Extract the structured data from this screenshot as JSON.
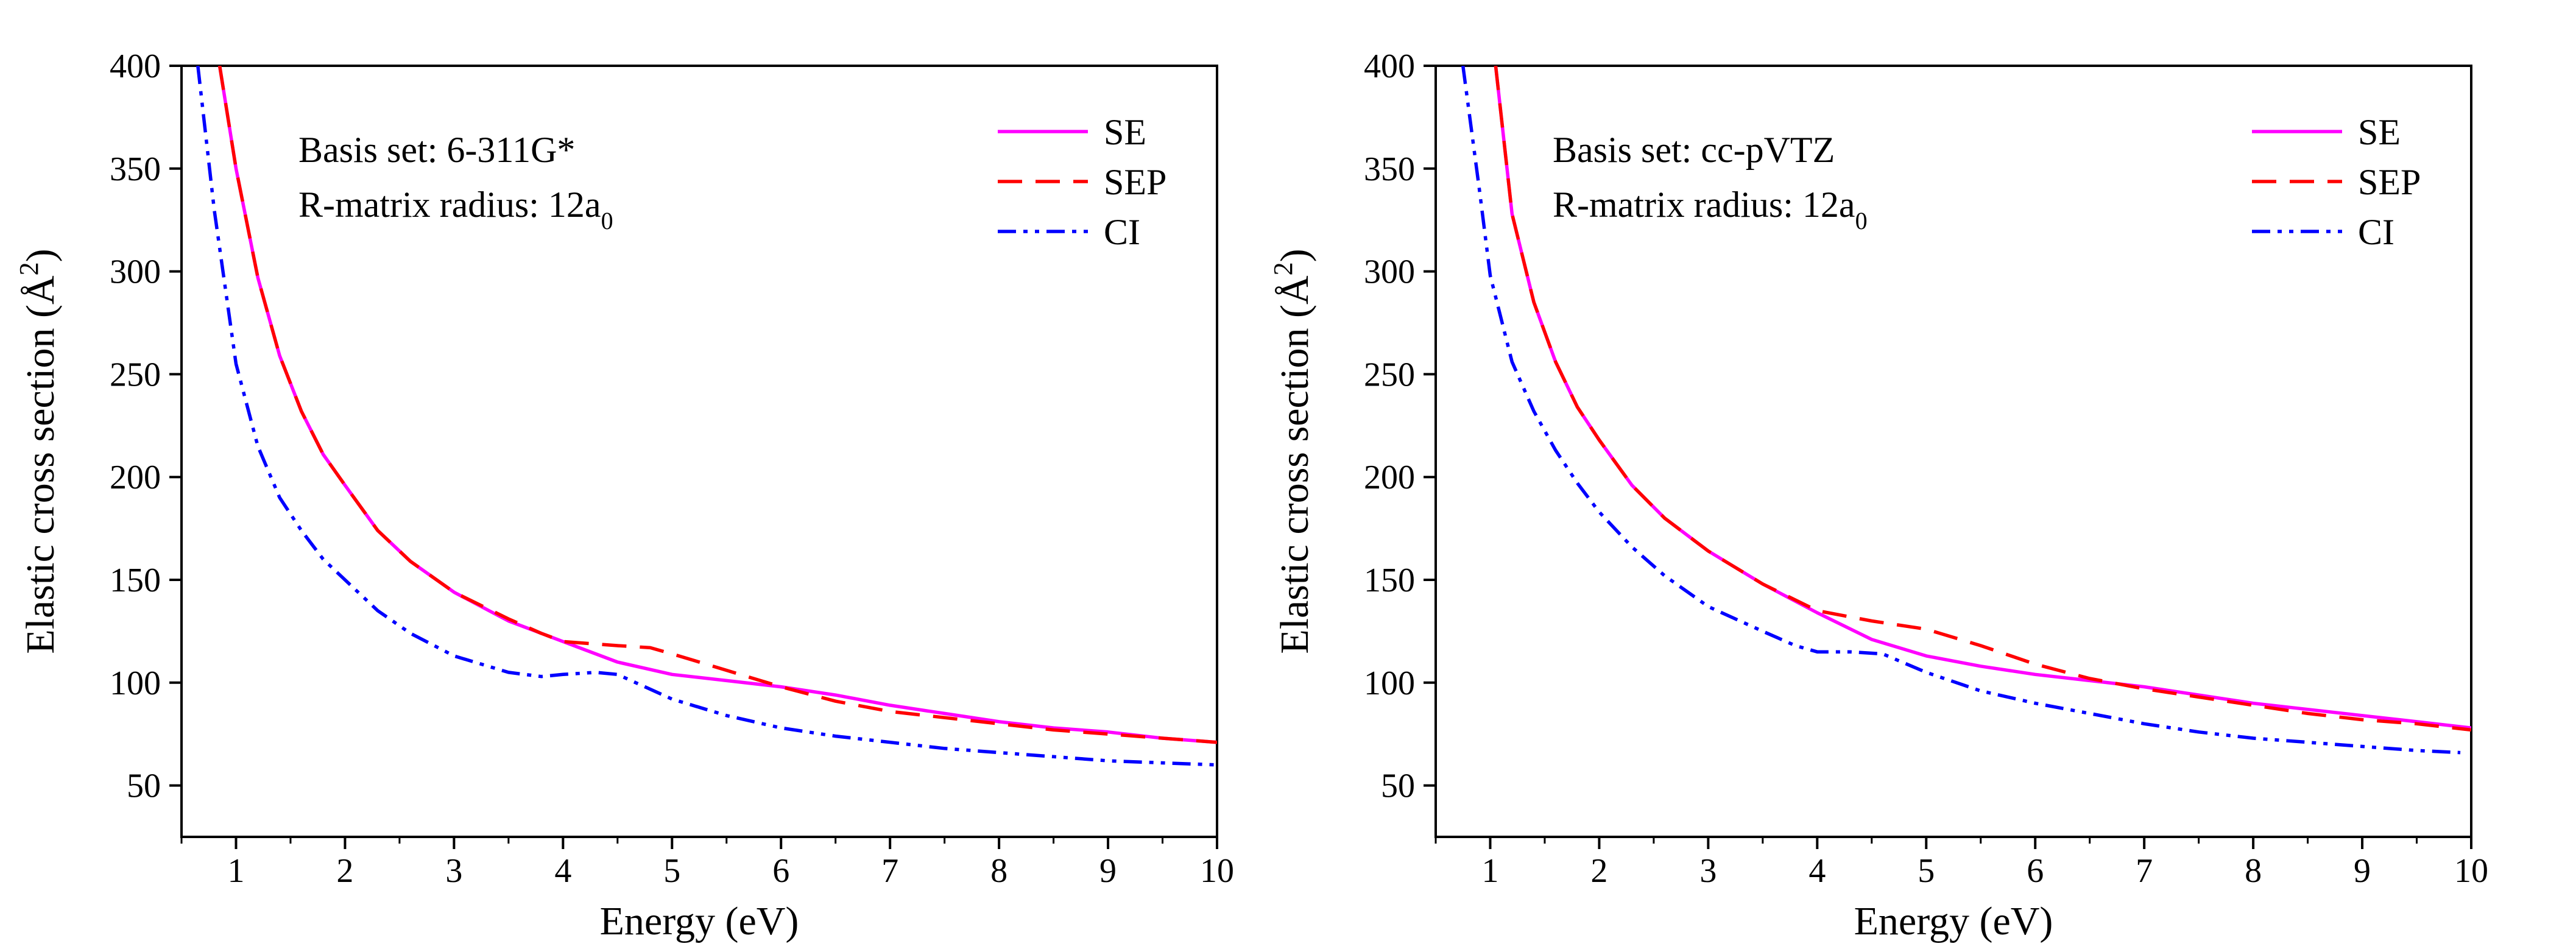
{
  "chart_data": [
    {
      "type": "line",
      "annotation": {
        "basis_label": "Basis set: 6-311G*",
        "radius_label": "R-matrix radius: 12a",
        "radius_subscript": "0"
      },
      "xlabel": "Energy (eV)",
      "ylabel": "Elastic cross section (Å",
      "ylabel_superscript": "2",
      "ylabel_close": ")",
      "xlim": [
        0.5,
        10
      ],
      "ylim": [
        25,
        400
      ],
      "x_ticks": [
        "1",
        "2",
        "3",
        "4",
        "5",
        "6",
        "7",
        "8",
        "9",
        "10"
      ],
      "y_ticks": [
        "50",
        "100",
        "150",
        "200",
        "250",
        "300",
        "350",
        "400"
      ],
      "legend_position": "top-right",
      "series": [
        {
          "name": "SE",
          "color": "#ff00ff",
          "style": "solid",
          "x": [
            0.85,
            1.0,
            1.2,
            1.4,
            1.6,
            1.8,
            2.0,
            2.3,
            2.6,
            3.0,
            3.5,
            4.0,
            4.5,
            5.0,
            5.5,
            6.0,
            6.5,
            7.0,
            7.5,
            8.0,
            8.5,
            9.0,
            9.5,
            10.0
          ],
          "values": [
            400,
            350,
            297,
            259,
            232,
            211,
            196,
            174,
            159,
            144,
            130,
            120,
            110,
            104,
            101,
            98,
            94,
            89,
            85,
            81,
            78,
            76,
            73,
            71
          ]
        },
        {
          "name": "SEP",
          "color": "#ff0000",
          "style": "dashed",
          "x": [
            0.85,
            1.0,
            1.2,
            1.4,
            1.6,
            1.8,
            2.0,
            2.3,
            2.6,
            3.0,
            3.5,
            3.8,
            4.0,
            4.5,
            4.8,
            5.0,
            5.5,
            6.0,
            6.5,
            7.0,
            7.5,
            8.0,
            8.5,
            9.0,
            9.5,
            10.0
          ],
          "values": [
            400,
            350,
            297,
            259,
            232,
            211,
            196,
            174,
            159,
            144,
            131,
            124,
            120,
            118,
            117,
            114,
            106,
            98,
            91,
            86,
            83,
            80,
            77,
            75,
            73,
            71
          ]
        },
        {
          "name": "CI",
          "color": "#0000ff",
          "style": "dashdotdot",
          "x": [
            0.65,
            0.8,
            1.0,
            1.2,
            1.4,
            1.6,
            1.8,
            2.0,
            2.3,
            2.6,
            3.0,
            3.5,
            3.8,
            4.0,
            4.3,
            4.5,
            5.0,
            5.5,
            6.0,
            6.5,
            7.0,
            7.5,
            8.0,
            8.5,
            9.0,
            9.5,
            10.0
          ],
          "values": [
            400,
            330,
            255,
            215,
            190,
            174,
            160,
            150,
            135,
            124,
            113,
            105,
            103,
            104,
            105,
            104,
            92,
            84,
            78,
            74,
            71,
            68,
            66,
            64,
            62,
            61,
            60
          ]
        }
      ]
    },
    {
      "type": "line",
      "annotation": {
        "basis_label": "Basis set: cc-pVTZ",
        "radius_label": "R-matrix radius: 12a",
        "radius_subscript": "0"
      },
      "xlabel": "Energy (eV)",
      "ylabel": "Elastic cross section (Å",
      "ylabel_superscript": "2",
      "ylabel_close": ")",
      "xlim": [
        0.5,
        10
      ],
      "ylim": [
        25,
        400
      ],
      "x_ticks": [
        "1",
        "2",
        "3",
        "4",
        "5",
        "6",
        "7",
        "8",
        "9",
        "10"
      ],
      "y_ticks": [
        "50",
        "100",
        "150",
        "200",
        "250",
        "300",
        "350",
        "400"
      ],
      "legend_position": "top-right",
      "series": [
        {
          "name": "SE",
          "color": "#ff00ff",
          "style": "solid",
          "x": [
            1.05,
            1.2,
            1.4,
            1.6,
            1.8,
            2.0,
            2.3,
            2.6,
            3.0,
            3.5,
            4.0,
            4.5,
            5.0,
            5.5,
            6.0,
            6.5,
            7.0,
            7.5,
            8.0,
            8.5,
            9.0,
            9.5,
            10.0
          ],
          "values": [
            400,
            328,
            285,
            256,
            234,
            218,
            196,
            180,
            164,
            148,
            134,
            121,
            113,
            108,
            104,
            101,
            98,
            94,
            90,
            87,
            84,
            81,
            78
          ]
        },
        {
          "name": "SEP",
          "color": "#ff0000",
          "style": "dashed",
          "x": [
            1.05,
            1.2,
            1.4,
            1.6,
            1.8,
            2.0,
            2.3,
            2.6,
            3.0,
            3.5,
            4.0,
            4.5,
            5.0,
            5.5,
            6.0,
            6.5,
            7.0,
            7.5,
            8.0,
            8.5,
            9.0,
            9.5,
            10.0
          ],
          "values": [
            400,
            328,
            285,
            256,
            234,
            218,
            196,
            180,
            164,
            148,
            135,
            130,
            126,
            118,
            109,
            102,
            97,
            93,
            89,
            85,
            82,
            80,
            77
          ]
        },
        {
          "name": "CI",
          "color": "#0000ff",
          "style": "dashdotdot",
          "x": [
            0.75,
            0.9,
            1.0,
            1.2,
            1.4,
            1.6,
            1.8,
            2.0,
            2.3,
            2.6,
            3.0,
            3.5,
            3.8,
            4.0,
            4.3,
            4.6,
            5.0,
            5.5,
            6.0,
            6.5,
            7.0,
            7.5,
            8.0,
            8.5,
            9.0,
            9.5,
            9.9
          ],
          "values": [
            400,
            340,
            298,
            256,
            232,
            213,
            197,
            183,
            166,
            152,
            137,
            125,
            118,
            115,
            115,
            114,
            105,
            96,
            90,
            85,
            80,
            76,
            73,
            71,
            69,
            67,
            66
          ]
        }
      ]
    }
  ]
}
